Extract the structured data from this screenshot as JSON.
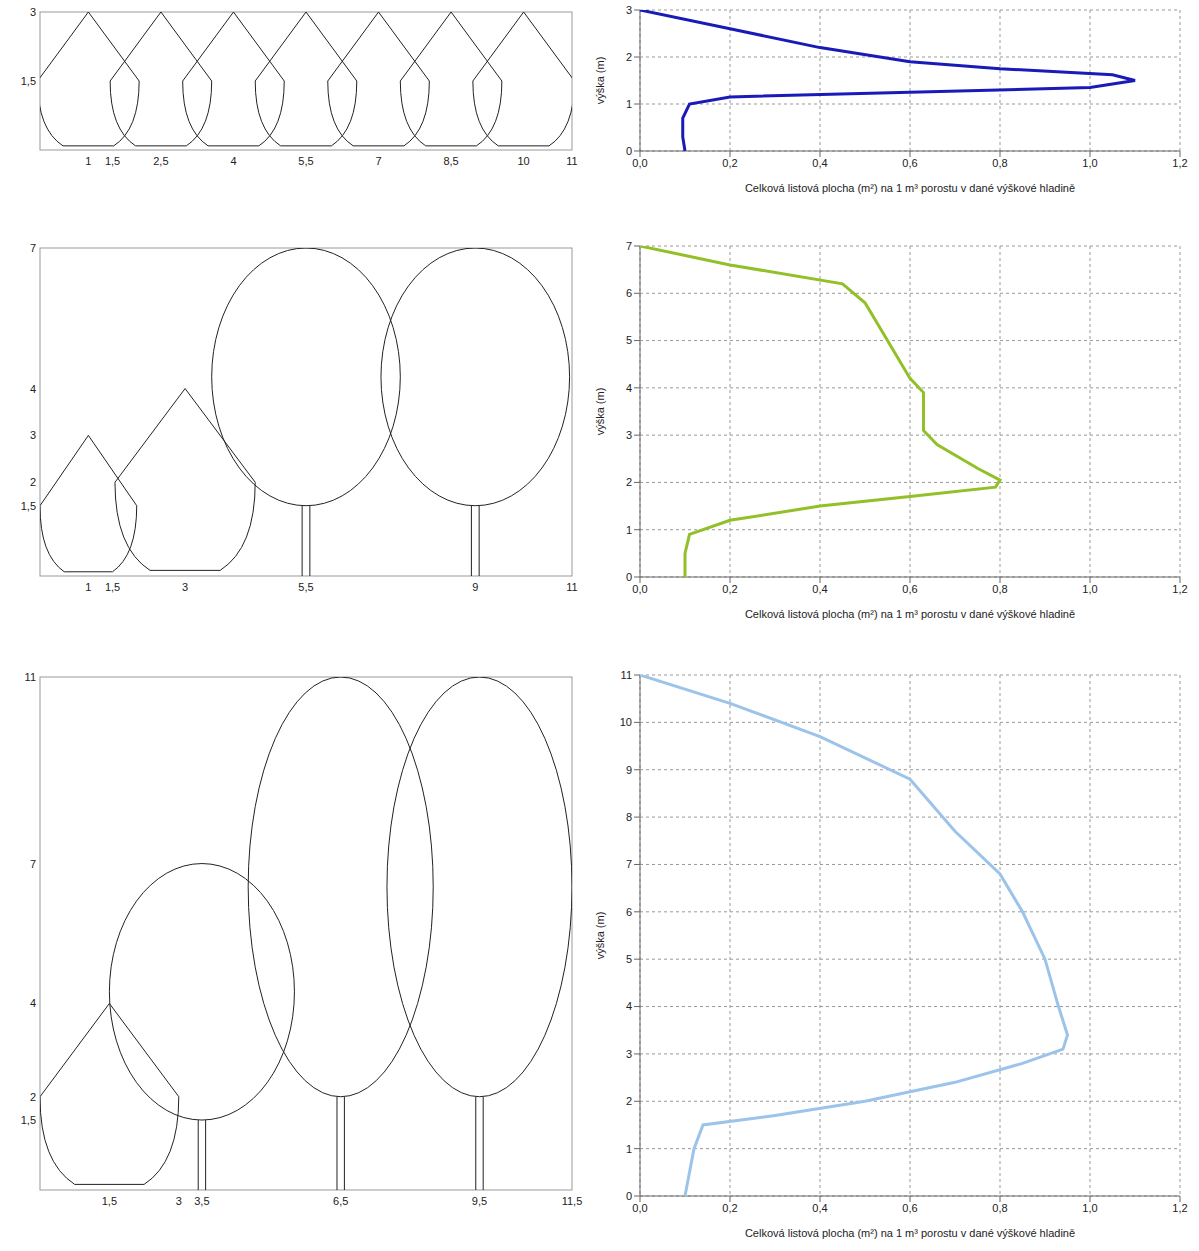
{
  "chart_data": [
    {
      "type": "diagram",
      "xlim": [
        0,
        11
      ],
      "ylim": [
        0,
        3
      ],
      "xticks": [
        1,
        {
          "value": 1.5,
          "label": "1,5"
        },
        {
          "value": 2.5,
          "label": "2,5"
        },
        4,
        {
          "value": 5.5,
          "label": "5,5"
        },
        7,
        {
          "value": 8.5,
          "label": "8,5"
        },
        10,
        11
      ],
      "yticks": [
        {
          "value": 1.5,
          "label": "1,5"
        },
        3
      ],
      "trees": [
        {
          "shape": "shrub",
          "x": 1,
          "top": 3,
          "width": 2.1
        },
        {
          "shape": "shrub",
          "x": 2.5,
          "top": 3,
          "width": 2.1
        },
        {
          "shape": "shrub",
          "x": 4,
          "top": 3,
          "width": 2.1
        },
        {
          "shape": "shrub",
          "x": 5.5,
          "top": 3,
          "width": 2.1
        },
        {
          "shape": "shrub",
          "x": 7,
          "top": 3,
          "width": 2.1
        },
        {
          "shape": "shrub",
          "x": 8.5,
          "top": 3,
          "width": 2.1
        },
        {
          "shape": "shrub",
          "x": 10,
          "top": 3,
          "width": 2.1
        }
      ]
    },
    {
      "type": "line",
      "xlabel": "Celková listová plocha (m²) na 1 m³ porostu v dané výškové hladině",
      "ylabel": "výška (m)",
      "xlim": [
        0,
        1.2
      ],
      "xticks": [
        {
          "value": 0,
          "label": "0,0"
        },
        {
          "value": 0.2,
          "label": "0,2"
        },
        {
          "value": 0.4,
          "label": "0,4"
        },
        {
          "value": 0.6,
          "label": "0,6"
        },
        {
          "value": 0.8,
          "label": "0,8"
        },
        {
          "value": 1,
          "label": "1,0"
        },
        {
          "value": 1.2,
          "label": "1,2"
        }
      ],
      "ylim": [
        0,
        3
      ],
      "yticks": [
        0,
        1,
        2,
        3
      ],
      "grid": true,
      "series": [
        {
          "color": "#1a1ab8",
          "x": [
            0.1,
            0.095,
            0.095,
            0.11,
            0.2,
            0.6,
            1.0,
            1.1,
            1.05,
            0.8,
            0.6,
            0.4,
            0.2,
            0
          ],
          "values": [
            0,
            0.3,
            0.7,
            1.0,
            1.15,
            1.25,
            1.35,
            1.5,
            1.62,
            1.75,
            1.9,
            2.2,
            2.6,
            3
          ]
        }
      ]
    },
    {
      "type": "diagram",
      "xlim": [
        0,
        11
      ],
      "ylim": [
        0,
        7
      ],
      "xticks": [
        1,
        {
          "value": 1.5,
          "label": "1,5"
        },
        3,
        {
          "value": 5.5,
          "label": "5,5"
        },
        9,
        11
      ],
      "yticks": [
        {
          "value": 1.5,
          "label": "1,5"
        },
        2,
        3,
        4,
        7
      ],
      "trees": [
        {
          "shape": "shrub",
          "x": 1,
          "top": 3,
          "width": 2
        },
        {
          "shape": "shrub",
          "x": 3,
          "top": 4,
          "width": 2.9
        },
        {
          "shape": "tree",
          "x": 5.5,
          "bottom": 1.5,
          "top": 7,
          "width": 3.9
        },
        {
          "shape": "tree",
          "x": 9,
          "bottom": 1.5,
          "top": 7,
          "width": 3.9
        }
      ]
    },
    {
      "type": "line",
      "xlabel": "Celková listová plocha (m²) na 1 m³ porostu v dané výškové hladině",
      "ylabel": "výška (m)",
      "xlim": [
        0,
        1.2
      ],
      "xticks": [
        {
          "value": 0,
          "label": "0,0"
        },
        {
          "value": 0.2,
          "label": "0,2"
        },
        {
          "value": 0.4,
          "label": "0,4"
        },
        {
          "value": 0.6,
          "label": "0,6"
        },
        {
          "value": 0.8,
          "label": "0,8"
        },
        {
          "value": 1,
          "label": "1,0"
        },
        {
          "value": 1.2,
          "label": "1,2"
        }
      ],
      "ylim": [
        0,
        7
      ],
      "yticks": [
        0,
        1,
        2,
        3,
        4,
        5,
        6,
        7
      ],
      "grid": true,
      "series": [
        {
          "color": "#92c028",
          "x": [
            0.1,
            0.1,
            0.11,
            0.2,
            0.4,
            0.6,
            0.79,
            0.8,
            0.75,
            0.66,
            0.63,
            0.63,
            0.63,
            0.6,
            0.55,
            0.5,
            0.45,
            0.2,
            0
          ],
          "values": [
            0,
            0.5,
            0.9,
            1.2,
            1.5,
            1.7,
            1.9,
            2.05,
            2.3,
            2.8,
            3.1,
            3.5,
            3.9,
            4.2,
            5.0,
            5.8,
            6.2,
            6.6,
            7
          ]
        }
      ]
    },
    {
      "type": "diagram",
      "xlim": [
        0,
        11.5
      ],
      "ylim": [
        0,
        11
      ],
      "xticks": [
        {
          "value": 1.5,
          "label": "1,5"
        },
        3,
        {
          "value": 3.5,
          "label": "3,5"
        },
        {
          "value": 6.5,
          "label": "6,5"
        },
        {
          "value": 9.5,
          "label": "9,5"
        },
        {
          "value": 11.5,
          "label": "11,5"
        }
      ],
      "yticks": [
        {
          "value": 1.5,
          "label": "1,5"
        },
        2,
        4,
        7,
        11
      ],
      "trees": [
        {
          "shape": "shrub",
          "x": 1.5,
          "top": 4,
          "width": 3
        },
        {
          "shape": "tree",
          "x": 3.5,
          "bottom": 1.5,
          "top": 7,
          "width": 4
        },
        {
          "shape": "tree",
          "x": 6.5,
          "bottom": 2,
          "top": 11,
          "width": 4
        },
        {
          "shape": "tree",
          "x": 9.5,
          "bottom": 2,
          "top": 11,
          "width": 4
        }
      ]
    },
    {
      "type": "line",
      "xlabel": "Celková listová plocha (m²) na 1 m³ porostu v dané výškové hladině",
      "ylabel": "výška (m)",
      "xlim": [
        0,
        1.2
      ],
      "xticks": [
        {
          "value": 0,
          "label": "0,0"
        },
        {
          "value": 0.2,
          "label": "0,2"
        },
        {
          "value": 0.4,
          "label": "0,4"
        },
        {
          "value": 0.6,
          "label": "0,6"
        },
        {
          "value": 0.8,
          "label": "0,8"
        },
        {
          "value": 1,
          "label": "1,0"
        },
        {
          "value": 1.2,
          "label": "1,2"
        }
      ],
      "ylim": [
        0,
        11
      ],
      "yticks": [
        0,
        1,
        2,
        3,
        4,
        5,
        6,
        7,
        8,
        9,
        10,
        11
      ],
      "grid": true,
      "series": [
        {
          "color": "#9cc3e9",
          "x": [
            0.1,
            0.12,
            0.14,
            0.3,
            0.5,
            0.7,
            0.85,
            0.94,
            0.95,
            0.93,
            0.9,
            0.85,
            0.8,
            0.7,
            0.6,
            0.4,
            0.2,
            0
          ],
          "values": [
            0,
            1,
            1.5,
            1.7,
            2.0,
            2.4,
            2.8,
            3.1,
            3.4,
            4.0,
            5.0,
            6.0,
            6.8,
            7.7,
            8.8,
            9.7,
            10.4,
            11
          ]
        }
      ]
    }
  ]
}
